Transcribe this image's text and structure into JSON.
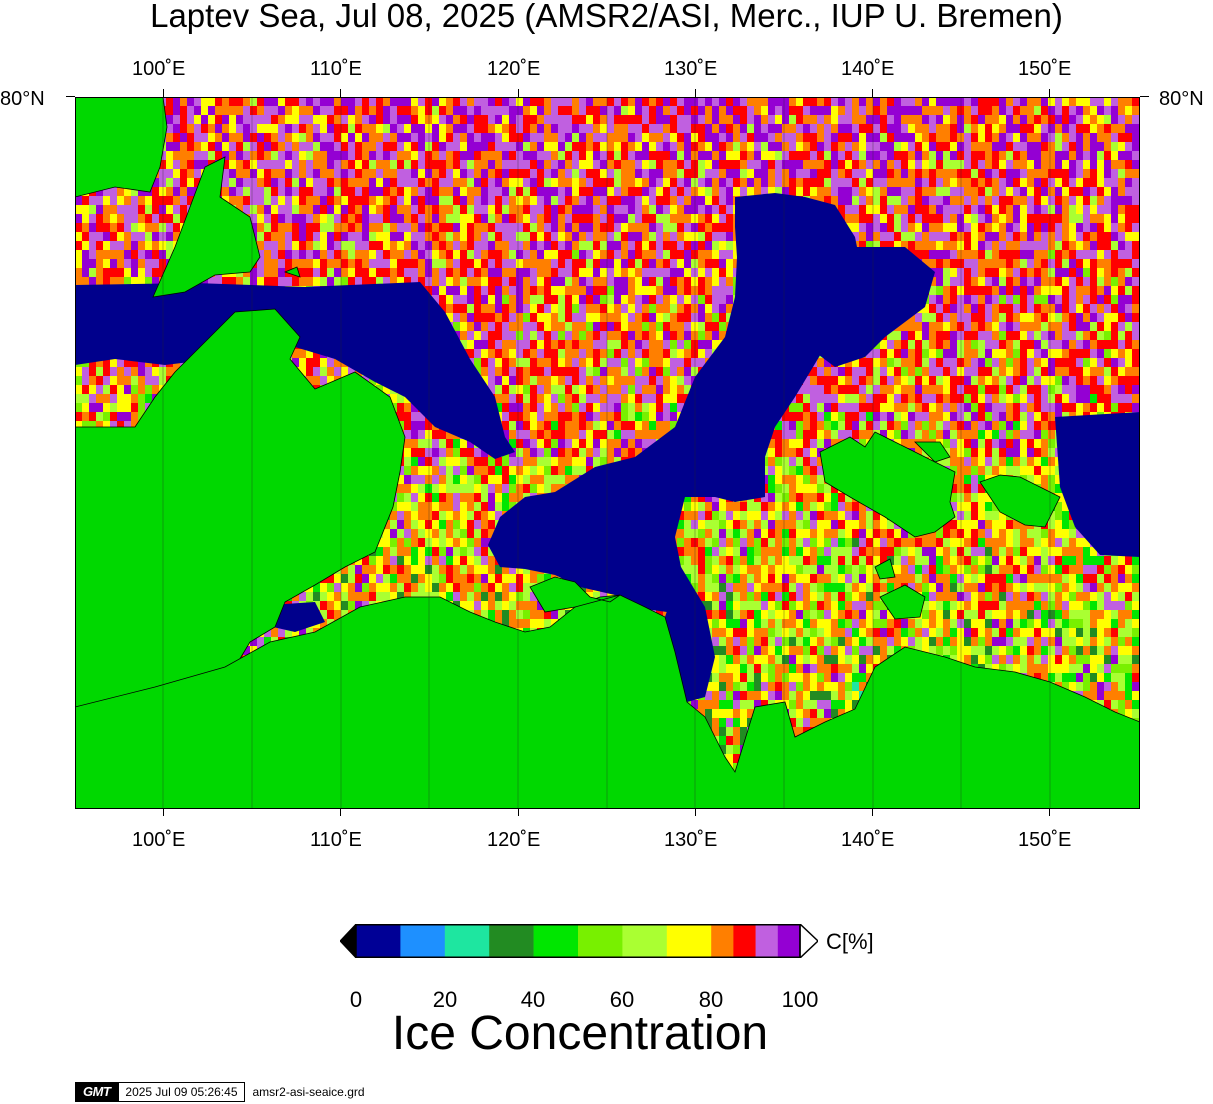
{
  "title": "Laptev Sea, Jul 08, 2025 (AMSR2/ASI, Merc., IUP U. Bremen)",
  "map": {
    "projection": "Mercator",
    "lon_range": [
      95,
      155
    ],
    "lat_top_label": "80°N",
    "lon_labels": [
      "100˚E",
      "110˚E",
      "120˚E",
      "130˚E",
      "140˚E",
      "150˚E"
    ],
    "lon_values": [
      100,
      110,
      120,
      130,
      140,
      150
    ],
    "colors": {
      "land": "#00d800",
      "open_water": "#00008c",
      "coast": "#000000"
    }
  },
  "colorbar": {
    "unit_label": "C[%]",
    "tick_labels": [
      "0",
      "20",
      "40",
      "60",
      "80",
      "100"
    ],
    "bins": [
      {
        "from": 0,
        "to": 10,
        "color": "#000096"
      },
      {
        "from": 10,
        "to": 20,
        "color": "#1e90ff"
      },
      {
        "from": 20,
        "to": 30,
        "color": "#1ee6a0"
      },
      {
        "from": 30,
        "to": 40,
        "color": "#228b22"
      },
      {
        "from": 40,
        "to": 50,
        "color": "#00e600"
      },
      {
        "from": 50,
        "to": 60,
        "color": "#78f000"
      },
      {
        "from": 60,
        "to": 70,
        "color": "#aaff32"
      },
      {
        "from": 70,
        "to": 80,
        "color": "#ffff00"
      },
      {
        "from": 80,
        "to": 85,
        "color": "#ff7f00"
      },
      {
        "from": 85,
        "to": 90,
        "color": "#ff0000"
      },
      {
        "from": 90,
        "to": 95,
        "color": "#c060e0"
      },
      {
        "from": 95,
        "to": 100,
        "color": "#9400d3"
      }
    ],
    "under_color": "#000000",
    "over_color": "#ffffff",
    "title": "Ice Concentration"
  },
  "timestamp": {
    "logo": "GMT",
    "time": "2025 Jul 09 05:26:45",
    "file": "amsr2-asi-seaice.grd"
  }
}
